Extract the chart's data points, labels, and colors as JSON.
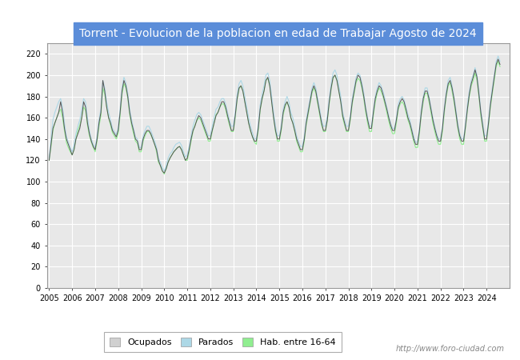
{
  "title": "Torrent - Evolucion de la poblacion en edad de Trabajar Agosto de 2024",
  "title_bg": "#5b8dd9",
  "title_color": "white",
  "ylim": [
    0,
    230
  ],
  "yticks": [
    0,
    20,
    40,
    60,
    80,
    100,
    120,
    140,
    160,
    180,
    200,
    220
  ],
  "watermark": "http://www.foro-ciudad.com",
  "legend_labels": [
    "Ocupados",
    "Parados",
    "Hab. entre 16-64"
  ],
  "legend_colors": [
    "#d0d0d0",
    "#add8e6",
    "#90ee90"
  ],
  "line_color_ocupados": "#555555",
  "line_color_parados": "#add8e6",
  "line_color_hab": "#90ee90",
  "plot_bg": "#e8e8e8",
  "grid_color": "#ffffff",
  "years_x": [
    2005,
    2006,
    2007,
    2008,
    2009,
    2010,
    2011,
    2012,
    2013,
    2014,
    2015,
    2016,
    2017,
    2018,
    2019,
    2020,
    2021,
    2022,
    2023,
    2024
  ],
  "months_per_year": 12,
  "ocupados": [
    120,
    135,
    150,
    155,
    160,
    165,
    175,
    165,
    150,
    140,
    135,
    130,
    125,
    130,
    140,
    145,
    150,
    160,
    175,
    170,
    155,
    145,
    138,
    133,
    130,
    140,
    155,
    165,
    195,
    185,
    170,
    160,
    155,
    148,
    145,
    142,
    148,
    165,
    185,
    195,
    190,
    180,
    165,
    155,
    148,
    140,
    138,
    130,
    130,
    140,
    145,
    148,
    148,
    145,
    140,
    135,
    130,
    120,
    115,
    110,
    108,
    112,
    118,
    122,
    125,
    128,
    130,
    132,
    133,
    130,
    125,
    120,
    122,
    130,
    140,
    148,
    152,
    158,
    162,
    160,
    155,
    150,
    145,
    140,
    140,
    148,
    155,
    162,
    165,
    170,
    175,
    175,
    170,
    162,
    155,
    148,
    148,
    162,
    178,
    188,
    190,
    185,
    175,
    165,
    155,
    148,
    142,
    138,
    138,
    150,
    168,
    178,
    185,
    195,
    198,
    190,
    175,
    160,
    148,
    140,
    140,
    150,
    165,
    172,
    175,
    170,
    160,
    155,
    148,
    140,
    135,
    130,
    130,
    140,
    155,
    165,
    175,
    185,
    190,
    185,
    175,
    165,
    155,
    148,
    148,
    158,
    175,
    188,
    198,
    200,
    195,
    185,
    175,
    162,
    155,
    148,
    148,
    160,
    175,
    185,
    195,
    200,
    198,
    190,
    180,
    168,
    158,
    150,
    150,
    165,
    178,
    185,
    190,
    188,
    182,
    175,
    168,
    160,
    153,
    148,
    148,
    158,
    170,
    175,
    178,
    175,
    168,
    160,
    155,
    148,
    140,
    135,
    135,
    148,
    165,
    178,
    185,
    185,
    178,
    168,
    158,
    150,
    143,
    138,
    138,
    150,
    168,
    182,
    192,
    195,
    188,
    178,
    165,
    152,
    143,
    138,
    138,
    152,
    168,
    182,
    192,
    198,
    205,
    198,
    182,
    165,
    152,
    140,
    140,
    155,
    172,
    185,
    198,
    210,
    215,
    210
  ],
  "parados": [
    122,
    140,
    158,
    165,
    170,
    175,
    178,
    170,
    155,
    143,
    137,
    132,
    128,
    135,
    145,
    152,
    158,
    168,
    178,
    175,
    160,
    148,
    140,
    135,
    132,
    143,
    158,
    168,
    195,
    188,
    175,
    165,
    158,
    150,
    147,
    144,
    150,
    168,
    188,
    198,
    193,
    183,
    168,
    158,
    150,
    142,
    140,
    132,
    132,
    143,
    148,
    152,
    152,
    148,
    143,
    138,
    132,
    122,
    118,
    113,
    110,
    115,
    122,
    126,
    128,
    132,
    135,
    136,
    137,
    134,
    128,
    123,
    125,
    133,
    143,
    152,
    158,
    163,
    165,
    163,
    158,
    153,
    148,
    143,
    143,
    152,
    160,
    168,
    170,
    175,
    178,
    178,
    173,
    165,
    158,
    152,
    152,
    165,
    182,
    192,
    195,
    190,
    180,
    170,
    160,
    152,
    146,
    140,
    140,
    153,
    172,
    182,
    190,
    200,
    202,
    195,
    180,
    165,
    152,
    143,
    143,
    153,
    168,
    175,
    180,
    175,
    165,
    160,
    152,
    143,
    138,
    133,
    133,
    143,
    158,
    168,
    178,
    188,
    193,
    188,
    178,
    168,
    158,
    152,
    152,
    162,
    178,
    192,
    202,
    205,
    200,
    190,
    180,
    165,
    158,
    152,
    152,
    163,
    178,
    188,
    198,
    202,
    200,
    193,
    183,
    170,
    160,
    152,
    152,
    167,
    180,
    188,
    193,
    190,
    185,
    178,
    170,
    162,
    155,
    150,
    150,
    160,
    173,
    178,
    180,
    177,
    170,
    163,
    158,
    150,
    143,
    137,
    137,
    150,
    168,
    180,
    188,
    188,
    180,
    170,
    160,
    152,
    145,
    140,
    140,
    152,
    170,
    185,
    195,
    198,
    190,
    180,
    168,
    155,
    145,
    140,
    140,
    155,
    172,
    185,
    195,
    200,
    207,
    200,
    185,
    167,
    155,
    143,
    143,
    158,
    175,
    188,
    200,
    213,
    218,
    213
  ],
  "hab1664": [
    120,
    133,
    148,
    155,
    160,
    165,
    168,
    160,
    148,
    137,
    132,
    128,
    125,
    130,
    140,
    148,
    153,
    160,
    170,
    167,
    153,
    143,
    137,
    132,
    128,
    138,
    152,
    162,
    188,
    182,
    170,
    160,
    153,
    146,
    143,
    140,
    145,
    162,
    182,
    192,
    188,
    178,
    163,
    153,
    145,
    138,
    136,
    128,
    128,
    138,
    143,
    147,
    147,
    144,
    140,
    135,
    128,
    118,
    115,
    110,
    107,
    112,
    118,
    122,
    125,
    128,
    130,
    132,
    133,
    130,
    125,
    120,
    120,
    128,
    138,
    147,
    153,
    157,
    160,
    158,
    153,
    148,
    143,
    138,
    138,
    147,
    155,
    163,
    165,
    170,
    173,
    173,
    168,
    160,
    153,
    147,
    147,
    160,
    177,
    187,
    190,
    185,
    175,
    165,
    155,
    147,
    142,
    137,
    135,
    148,
    167,
    177,
    185,
    195,
    197,
    190,
    175,
    160,
    147,
    138,
    138,
    148,
    163,
    170,
    175,
    170,
    160,
    155,
    147,
    138,
    133,
    128,
    128,
    138,
    153,
    163,
    173,
    183,
    188,
    183,
    173,
    163,
    153,
    147,
    147,
    157,
    173,
    187,
    197,
    200,
    195,
    185,
    175,
    160,
    153,
    147,
    147,
    158,
    173,
    183,
    193,
    197,
    195,
    188,
    178,
    165,
    155,
    147,
    147,
    162,
    175,
    183,
    188,
    185,
    180,
    173,
    165,
    157,
    150,
    145,
    145,
    155,
    168,
    173,
    175,
    172,
    165,
    158,
    153,
    145,
    138,
    132,
    132,
    145,
    163,
    175,
    183,
    183,
    175,
    165,
    155,
    147,
    140,
    135,
    135,
    147,
    165,
    180,
    190,
    193,
    185,
    175,
    163,
    150,
    140,
    135,
    135,
    150,
    167,
    180,
    190,
    195,
    202,
    195,
    180,
    162,
    150,
    138,
    138,
    153,
    170,
    183,
    195,
    208,
    213,
    208
  ]
}
